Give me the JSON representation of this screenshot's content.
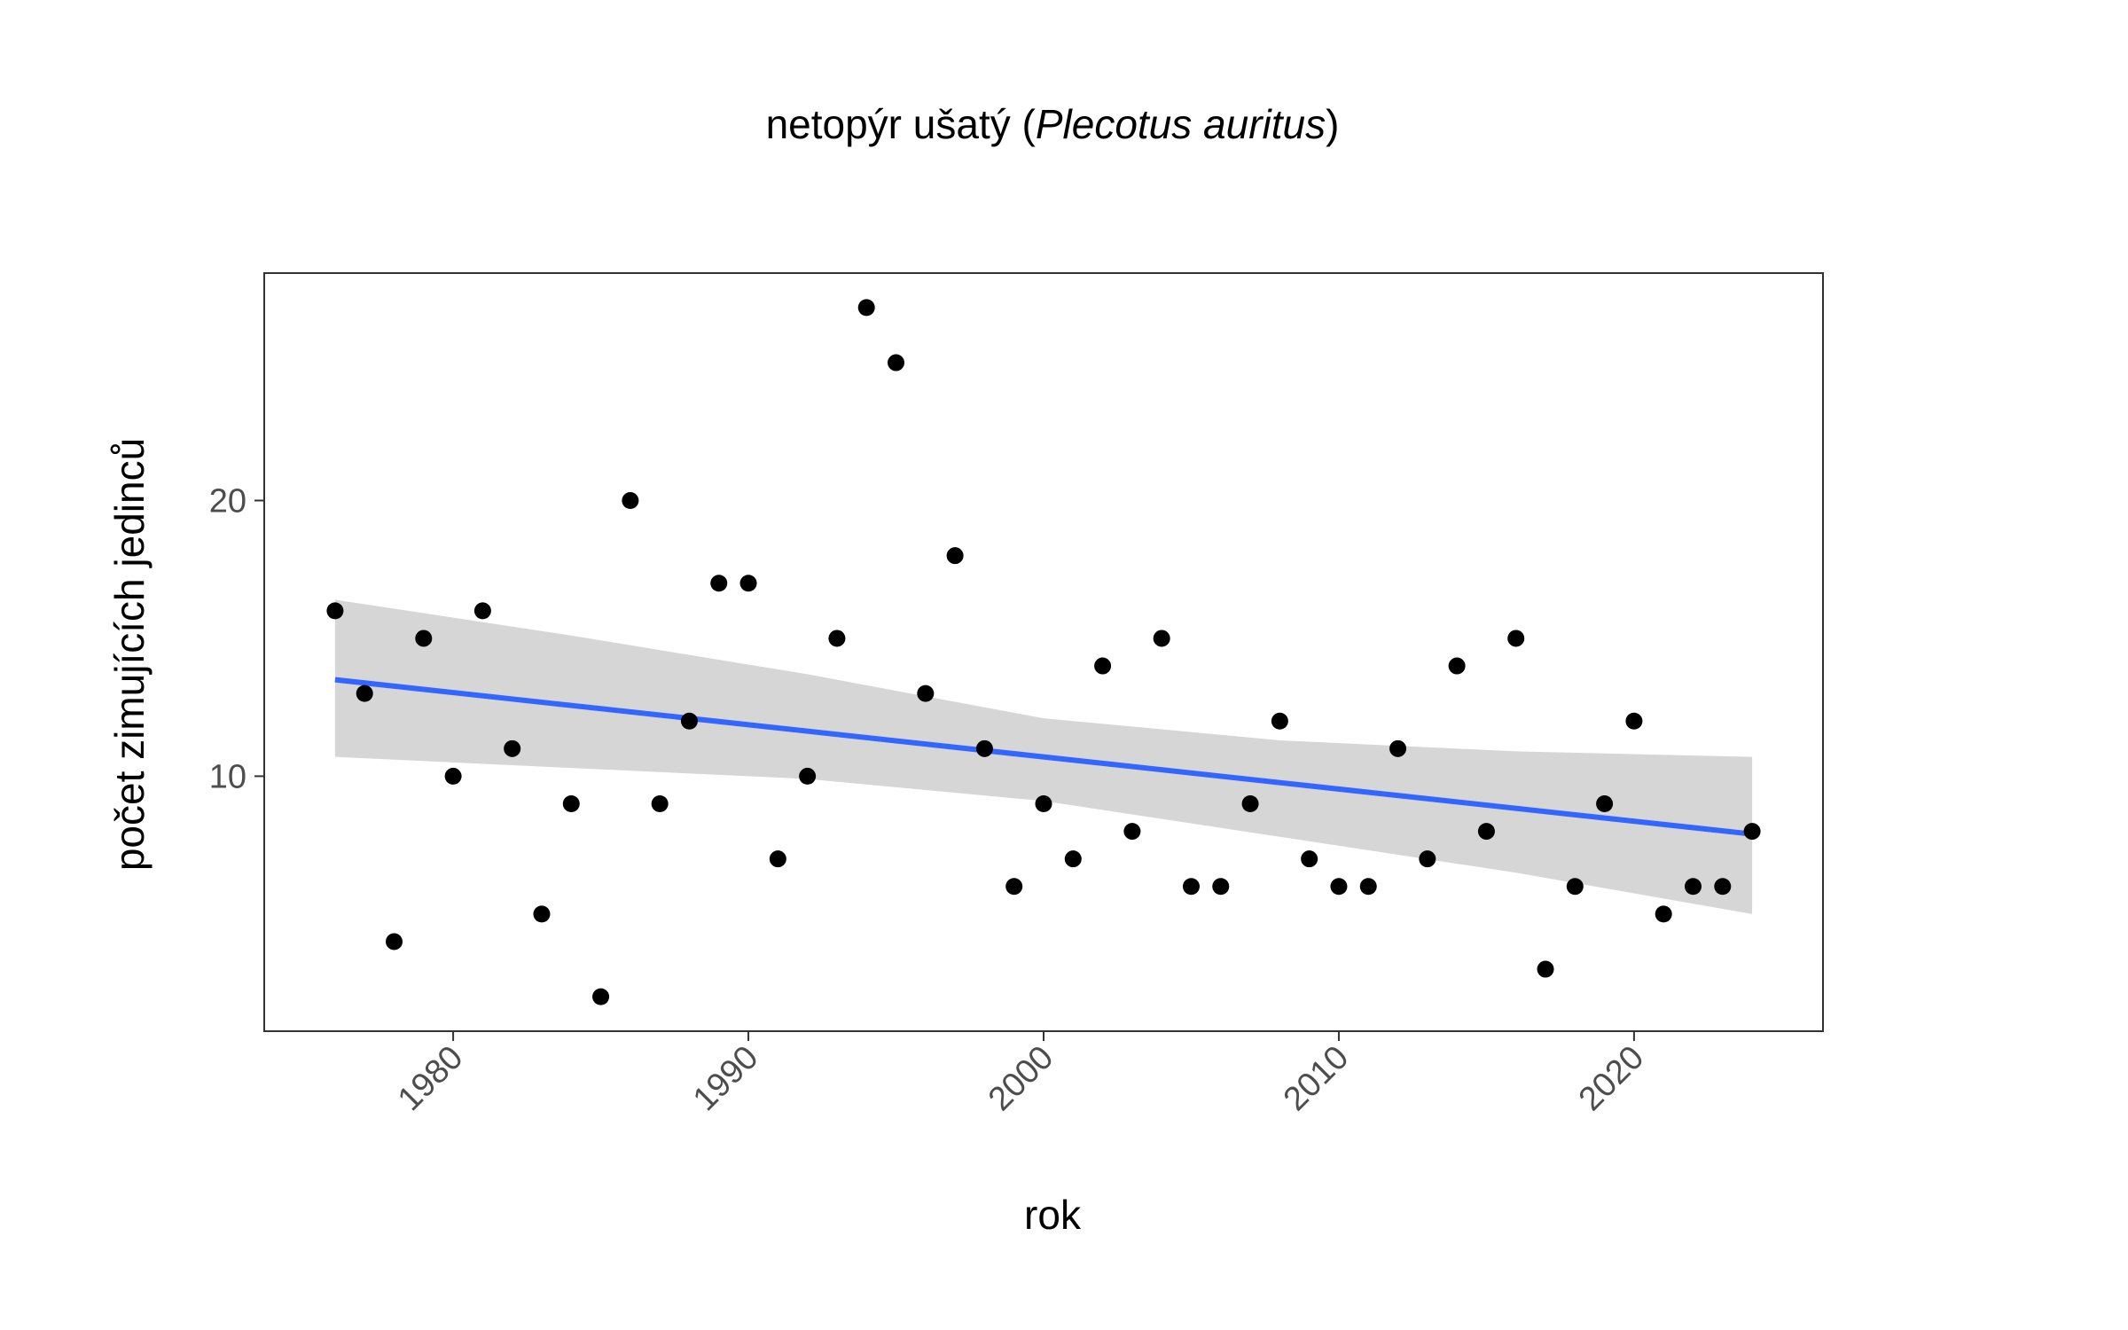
{
  "chart_data": {
    "type": "scatter",
    "title": {
      "prefix": "netopýr ušatý (",
      "italic": "Plecotus auritus",
      "suffix": ")"
    },
    "xlabel": "rok",
    "ylabel": "počet zimujících jedinců",
    "xlim": [
      1973.6,
      2026.4
    ],
    "ylim": [
      0.75,
      28.25
    ],
    "x_ticks": [
      1980,
      1990,
      2000,
      2010,
      2020
    ],
    "y_ticks": [
      10,
      20
    ],
    "x_tick_labels": [
      "1980",
      "1990",
      "2000",
      "2010",
      "2020"
    ],
    "y_tick_labels": [
      "10",
      "20"
    ],
    "grid": false,
    "legend": "none",
    "colors": {
      "points": "#000000",
      "trend_line": "#3366ff",
      "confidence_band": "#999999",
      "panel_border": "#333333",
      "tick_text": "#4d4d4d"
    },
    "series": [
      {
        "kind": "points",
        "x": [
          1976,
          1977,
          1978,
          1979,
          1980,
          1981,
          1982,
          1983,
          1984,
          1985,
          1986,
          1987,
          1988,
          1989,
          1990,
          1991,
          1992,
          1993,
          1994,
          1995,
          1996,
          1997,
          1998,
          1999,
          2000,
          2001,
          2002,
          2003,
          2004,
          2005,
          2006,
          2007,
          2008,
          2009,
          2010,
          2011,
          2012,
          2013,
          2014,
          2015,
          2016,
          2017,
          2018,
          2019,
          2020,
          2021,
          2022,
          2023,
          2024
        ],
        "y": [
          16,
          13,
          4,
          15,
          10,
          16,
          11,
          5,
          9,
          2,
          20,
          9,
          12,
          17,
          17,
          7,
          10,
          15,
          27,
          25,
          13,
          18,
          11,
          6,
          9,
          7,
          14,
          8,
          15,
          6,
          6,
          9,
          12,
          7,
          6,
          6,
          11,
          7,
          14,
          8,
          15,
          3,
          6,
          9,
          12,
          5,
          6,
          6,
          8
        ]
      },
      {
        "kind": "linear_trend",
        "x": [
          1976,
          2024
        ],
        "y": [
          13.5,
          7.9
        ]
      },
      {
        "kind": "confidence_band",
        "x": [
          1976,
          1984,
          1992,
          2000,
          2008,
          2016,
          2024
        ],
        "lower": [
          10.7,
          10.3,
          9.9,
          9.1,
          7.8,
          6.5,
          5.0
        ],
        "upper": [
          16.4,
          15.1,
          13.7,
          12.1,
          11.3,
          10.9,
          10.7
        ]
      }
    ]
  }
}
